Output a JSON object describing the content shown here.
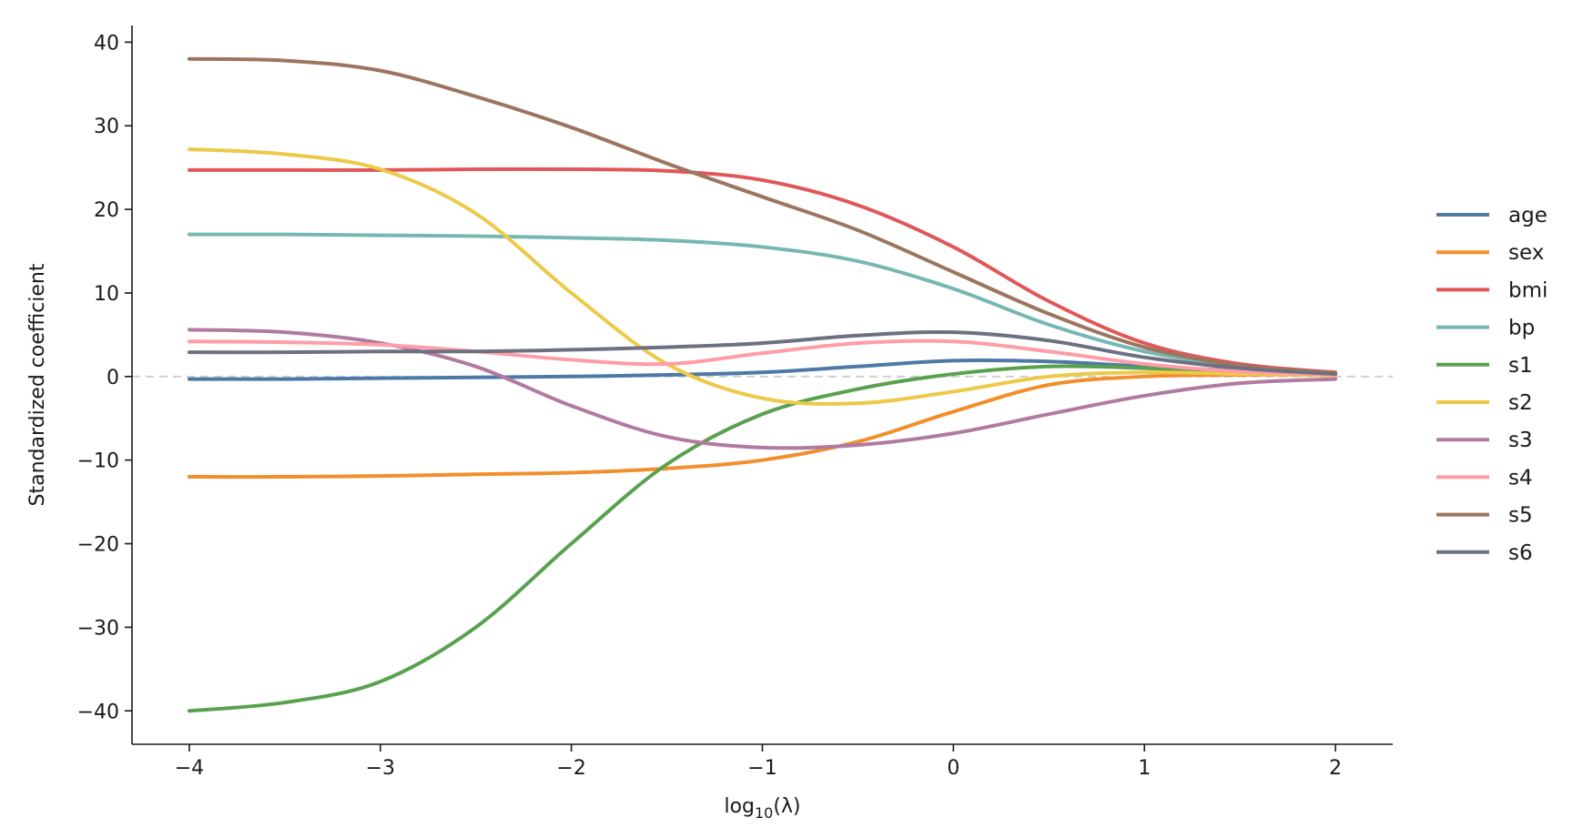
{
  "chart_data": {
    "type": "line",
    "xlabel_base": "log",
    "xlabel_sub": "10",
    "xlabel_arg": "(λ)",
    "ylabel": "Standardized coefficient",
    "xlim": [
      -4.3,
      2.3
    ],
    "ylim": [
      -44,
      42
    ],
    "x_ticks": [
      -4,
      -3,
      -2,
      -1,
      0,
      1,
      2
    ],
    "x_tick_labels": [
      "−4",
      "−3",
      "−2",
      "−1",
      "0",
      "1",
      "2"
    ],
    "y_ticks": [
      40,
      30,
      20,
      10,
      0,
      -10,
      -20,
      -30,
      -40
    ],
    "y_tick_labels": [
      "40",
      "30",
      "20",
      "10",
      "0",
      "−10",
      "−20",
      "−30",
      "−40"
    ],
    "zero_line": true,
    "grid": false,
    "legend_position": "right",
    "x": [
      -4,
      -3.5,
      -3,
      -2.5,
      -2,
      -1.5,
      -1,
      -0.5,
      0,
      0.5,
      1,
      1.5,
      2
    ],
    "series": [
      {
        "name": "age",
        "color": "#4e79a7",
        "values": [
          -0.3,
          -0.3,
          -0.2,
          -0.1,
          0.0,
          0.2,
          0.5,
          1.2,
          1.9,
          1.8,
          1.2,
          0.7,
          0.3
        ]
      },
      {
        "name": "sex",
        "color": "#f28e2b",
        "values": [
          -12.0,
          -12.0,
          -11.9,
          -11.7,
          -11.5,
          -11.0,
          -10.0,
          -7.8,
          -4.2,
          -1.0,
          0.0,
          0.2,
          0.2
        ]
      },
      {
        "name": "bmi",
        "color": "#e15759",
        "values": [
          24.7,
          24.7,
          24.7,
          24.8,
          24.8,
          24.6,
          23.5,
          20.5,
          15.5,
          9.0,
          4.0,
          1.5,
          0.5
        ]
      },
      {
        "name": "bp",
        "color": "#76b7b2",
        "values": [
          17.0,
          17.0,
          16.9,
          16.8,
          16.6,
          16.3,
          15.5,
          13.8,
          10.5,
          6.2,
          3.0,
          1.2,
          0.4
        ]
      },
      {
        "name": "s1",
        "color": "#59a14f",
        "values": [
          -40.0,
          -39.0,
          -36.5,
          -30.0,
          -20.0,
          -10.5,
          -4.5,
          -1.5,
          0.3,
          1.2,
          1.0,
          0.5,
          0.1
        ]
      },
      {
        "name": "s2",
        "color": "#edc948",
        "values": [
          27.2,
          26.6,
          24.8,
          19.5,
          10.0,
          1.5,
          -2.6,
          -3.2,
          -1.8,
          0.0,
          0.5,
          0.3,
          0.1
        ]
      },
      {
        "name": "s3",
        "color": "#b07aa1",
        "values": [
          5.6,
          5.3,
          4.0,
          1.2,
          -3.5,
          -7.2,
          -8.5,
          -8.2,
          -6.8,
          -4.5,
          -2.3,
          -0.8,
          -0.3
        ]
      },
      {
        "name": "s4",
        "color": "#ff9da7",
        "values": [
          4.2,
          4.1,
          3.8,
          3.0,
          2.0,
          1.5,
          2.8,
          4.0,
          4.2,
          3.0,
          1.5,
          0.6,
          0.2
        ]
      },
      {
        "name": "s5",
        "color": "#9c755f",
        "values": [
          38.0,
          37.8,
          36.6,
          33.5,
          29.8,
          25.5,
          21.5,
          17.5,
          12.5,
          7.5,
          3.5,
          1.3,
          0.4
        ]
      },
      {
        "name": "s6",
        "color": "#6c7080",
        "values": [
          2.9,
          2.9,
          3.0,
          3.0,
          3.2,
          3.5,
          4.0,
          4.9,
          5.3,
          4.3,
          2.3,
          1.0,
          0.3
        ]
      }
    ]
  }
}
